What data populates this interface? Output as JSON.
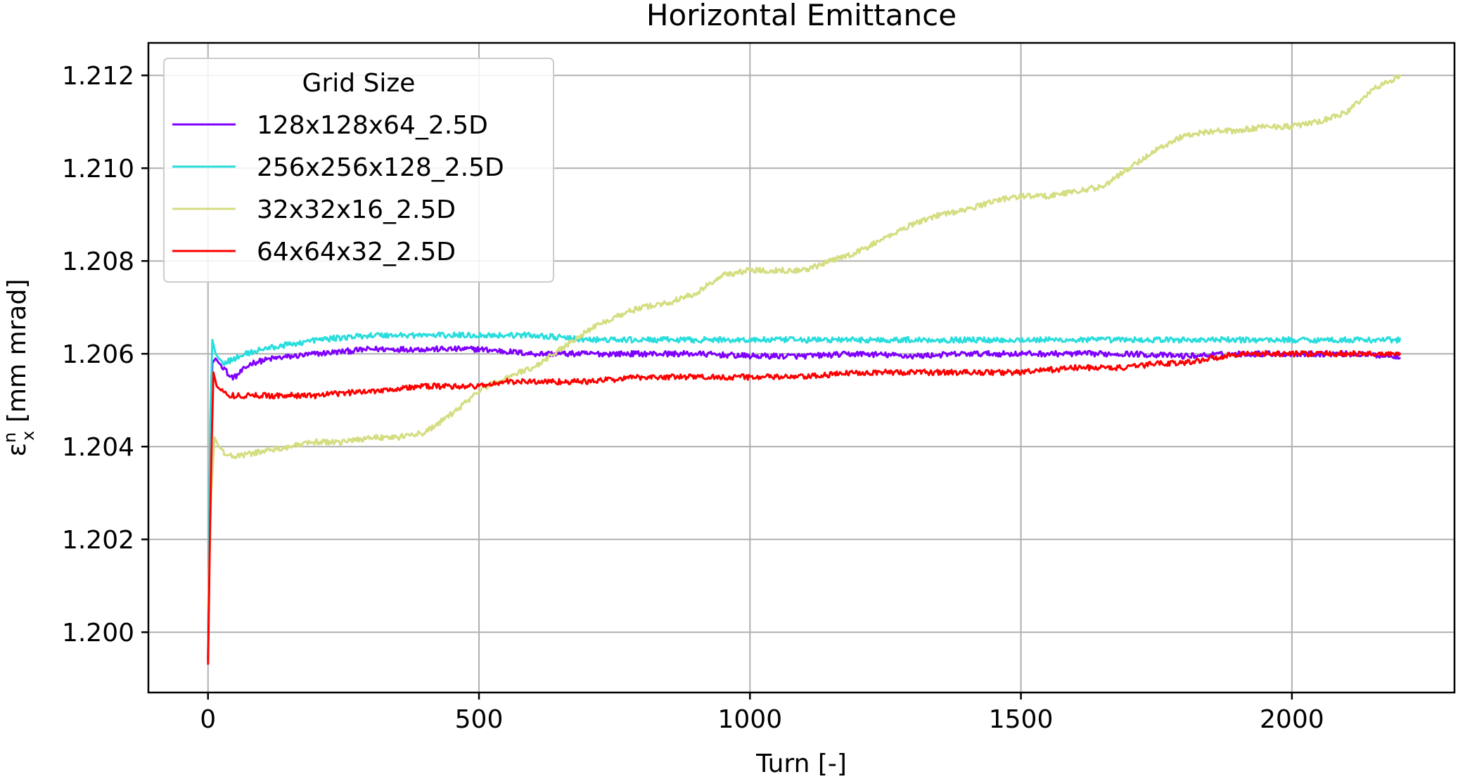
{
  "chart_data": {
    "type": "line",
    "title": "Horizontal Emittance",
    "xlabel": "Turn [-]",
    "ylabel_main": "ε",
    "ylabel_sup": "n",
    "ylabel_sub": "x",
    "ylabel_rest": " [mm mrad]",
    "xlim": [
      -110,
      2300
    ],
    "ylim": [
      1.1987,
      1.2127
    ],
    "xticks": [
      0,
      500,
      1000,
      1500,
      2000
    ],
    "xtick_labels": [
      "0",
      "500",
      "1000",
      "1500",
      "2000"
    ],
    "yticks": [
      1.2,
      1.202,
      1.204,
      1.206,
      1.208,
      1.21,
      1.212
    ],
    "ytick_labels": [
      "1.200",
      "1.202",
      "1.204",
      "1.206",
      "1.208",
      "1.210",
      "1.212"
    ],
    "grid": true,
    "legend_title": "Grid Size",
    "legend_position": "top-left",
    "series": [
      {
        "name": "128x128x64_2.5D",
        "color": "#8000ff",
        "noise": 6e-05,
        "points": [
          [
            0,
            1.1994
          ],
          [
            4,
            1.204
          ],
          [
            8,
            1.2058
          ],
          [
            14,
            1.2059
          ],
          [
            20,
            1.2058
          ],
          [
            30,
            1.2057
          ],
          [
            40,
            1.2055
          ],
          [
            50,
            1.2055
          ],
          [
            60,
            1.2056
          ],
          [
            80,
            1.2058
          ],
          [
            120,
            1.2059
          ],
          [
            200,
            1.206
          ],
          [
            300,
            1.2061
          ],
          [
            350,
            1.2061
          ],
          [
            400,
            1.2061
          ],
          [
            500,
            1.2061
          ],
          [
            600,
            1.206
          ],
          [
            700,
            1.206
          ],
          [
            800,
            1.206
          ],
          [
            900,
            1.206
          ],
          [
            1000,
            1.20595
          ],
          [
            1100,
            1.20595
          ],
          [
            1200,
            1.206
          ],
          [
            1300,
            1.20595
          ],
          [
            1400,
            1.206
          ],
          [
            1500,
            1.206
          ],
          [
            1600,
            1.206
          ],
          [
            1700,
            1.206
          ],
          [
            1800,
            1.20595
          ],
          [
            1900,
            1.206
          ],
          [
            2000,
            1.206
          ],
          [
            2100,
            1.206
          ],
          [
            2200,
            1.20595
          ]
        ]
      },
      {
        "name": "256x256x128_2.5D",
        "color": "#2adddd",
        "noise": 6e-05,
        "points": [
          [
            0,
            1.1994
          ],
          [
            4,
            1.2045
          ],
          [
            8,
            1.2063
          ],
          [
            14,
            1.206
          ],
          [
            20,
            1.2059
          ],
          [
            30,
            1.2058
          ],
          [
            50,
            1.2059
          ],
          [
            70,
            1.206
          ],
          [
            100,
            1.2061
          ],
          [
            150,
            1.2062
          ],
          [
            200,
            1.2063
          ],
          [
            300,
            1.2064
          ],
          [
            400,
            1.2064
          ],
          [
            500,
            1.2064
          ],
          [
            600,
            1.2064
          ],
          [
            700,
            1.2063
          ],
          [
            800,
            1.2063
          ],
          [
            900,
            1.2063
          ],
          [
            1000,
            1.2063
          ],
          [
            1100,
            1.2063
          ],
          [
            1200,
            1.2063
          ],
          [
            1300,
            1.2063
          ],
          [
            1400,
            1.2063
          ],
          [
            1500,
            1.2063
          ],
          [
            1600,
            1.2063
          ],
          [
            1700,
            1.2063
          ],
          [
            1800,
            1.2063
          ],
          [
            1900,
            1.2063
          ],
          [
            2000,
            1.2063
          ],
          [
            2100,
            1.2063
          ],
          [
            2200,
            1.2063
          ]
        ]
      },
      {
        "name": "32x32x16_2.5D",
        "color": "#d4dd80",
        "noise": 6e-05,
        "points": [
          [
            0,
            1.2005
          ],
          [
            6,
            1.203
          ],
          [
            12,
            1.2042
          ],
          [
            20,
            1.204
          ],
          [
            35,
            1.2038
          ],
          [
            60,
            1.2038
          ],
          [
            100,
            1.2039
          ],
          [
            150,
            1.204
          ],
          [
            200,
            1.2041
          ],
          [
            250,
            1.2041
          ],
          [
            300,
            1.2042
          ],
          [
            350,
            1.2042
          ],
          [
            400,
            1.2043
          ],
          [
            450,
            1.2047
          ],
          [
            500,
            1.2052
          ],
          [
            550,
            1.2055
          ],
          [
            600,
            1.2057
          ],
          [
            650,
            1.2061
          ],
          [
            700,
            1.2065
          ],
          [
            750,
            1.2068
          ],
          [
            800,
            1.207
          ],
          [
            850,
            1.2071
          ],
          [
            900,
            1.2073
          ],
          [
            950,
            1.2077
          ],
          [
            1000,
            1.2078
          ],
          [
            1050,
            1.2078
          ],
          [
            1100,
            1.2078
          ],
          [
            1150,
            1.208
          ],
          [
            1200,
            1.2082
          ],
          [
            1250,
            1.2085
          ],
          [
            1300,
            1.2088
          ],
          [
            1350,
            1.209
          ],
          [
            1400,
            1.2091
          ],
          [
            1450,
            1.2093
          ],
          [
            1500,
            1.2094
          ],
          [
            1550,
            1.2094
          ],
          [
            1600,
            1.2095
          ],
          [
            1650,
            1.2096
          ],
          [
            1700,
            1.21
          ],
          [
            1750,
            1.2104
          ],
          [
            1800,
            1.2107
          ],
          [
            1850,
            1.2108
          ],
          [
            1900,
            1.2108
          ],
          [
            1950,
            1.2109
          ],
          [
            2000,
            1.2109
          ],
          [
            2050,
            1.211
          ],
          [
            2100,
            1.2112
          ],
          [
            2150,
            1.2117
          ],
          [
            2200,
            1.212
          ]
        ]
      },
      {
        "name": "64x64x32_2.5D",
        "color": "#ff0000",
        "noise": 6e-05,
        "points": [
          [
            0,
            1.1993
          ],
          [
            5,
            1.2032
          ],
          [
            10,
            1.2056
          ],
          [
            16,
            1.2053
          ],
          [
            25,
            1.2052
          ],
          [
            40,
            1.2051
          ],
          [
            60,
            1.2051
          ],
          [
            100,
            1.2051
          ],
          [
            200,
            1.2051
          ],
          [
            300,
            1.2052
          ],
          [
            400,
            1.2053
          ],
          [
            450,
            1.2053
          ],
          [
            500,
            1.2053
          ],
          [
            550,
            1.2054
          ],
          [
            600,
            1.2054
          ],
          [
            700,
            1.2054
          ],
          [
            800,
            1.2055
          ],
          [
            900,
            1.2055
          ],
          [
            1000,
            1.2055
          ],
          [
            1100,
            1.2055
          ],
          [
            1200,
            1.2056
          ],
          [
            1300,
            1.2056
          ],
          [
            1400,
            1.2056
          ],
          [
            1500,
            1.2056
          ],
          [
            1600,
            1.2057
          ],
          [
            1700,
            1.2057
          ],
          [
            1750,
            1.2058
          ],
          [
            1800,
            1.2058
          ],
          [
            1850,
            1.2059
          ],
          [
            1900,
            1.206
          ],
          [
            2000,
            1.206
          ],
          [
            2100,
            1.206
          ],
          [
            2200,
            1.206
          ]
        ]
      }
    ]
  }
}
